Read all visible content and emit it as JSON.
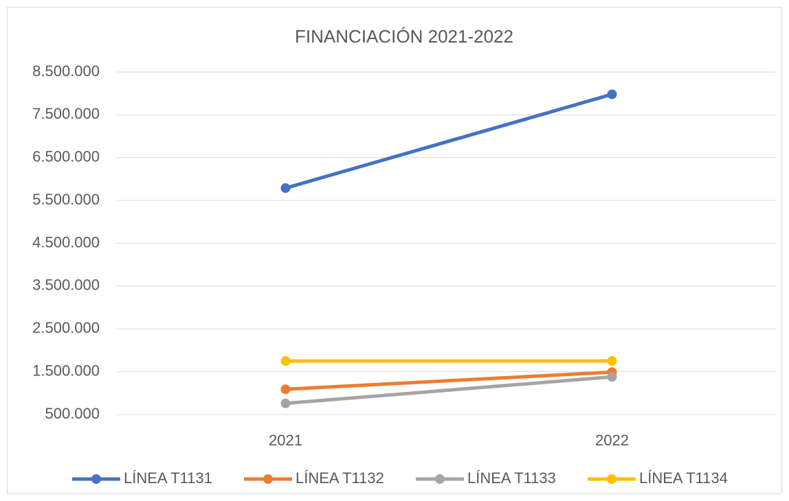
{
  "chart_data": {
    "type": "line",
    "title": "FINANCIACIÓN 2021-2022",
    "categories": [
      "2021",
      "2022"
    ],
    "series": [
      {
        "name": "LÍNEA T1131",
        "color": "#4472c4",
        "values": [
          5790000,
          7980000
        ]
      },
      {
        "name": "LÍNEA T1132",
        "color": "#ed7d31",
        "values": [
          1090000,
          1490000
        ]
      },
      {
        "name": "LÍNEA T1133",
        "color": "#a5a5a5",
        "values": [
          760000,
          1380000
        ]
      },
      {
        "name": "LÍNEA T1134",
        "color": "#ffc000",
        "values": [
          1750000,
          1750000
        ]
      }
    ],
    "ylim": [
      500000,
      8500000
    ],
    "yticks": [
      {
        "value": 500000,
        "label": "500.000"
      },
      {
        "value": 1500000,
        "label": "1.500.000"
      },
      {
        "value": 2500000,
        "label": "2.500.000"
      },
      {
        "value": 3500000,
        "label": "3.500.000"
      },
      {
        "value": 4500000,
        "label": "4.500.000"
      },
      {
        "value": 5500000,
        "label": "5.500.000"
      },
      {
        "value": 6500000,
        "label": "6.500.000"
      },
      {
        "value": 7500000,
        "label": "7.500.000"
      },
      {
        "value": 8500000,
        "label": "8.500.000"
      }
    ],
    "grid": true,
    "legend": "bottom"
  }
}
